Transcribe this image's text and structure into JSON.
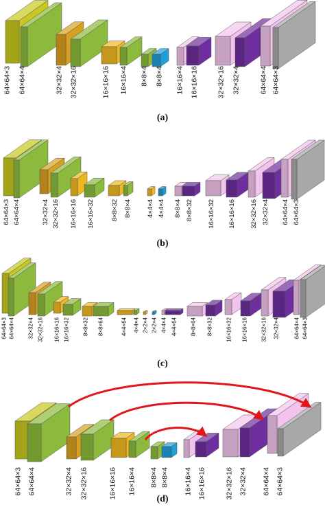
{
  "panels": [
    {
      "caption": "(a)",
      "labels": [
        "64×64×3",
        "64×64×4",
        "32×32×4",
        "32×32×16",
        "16×16×16",
        "16×16×4",
        "8×8×4",
        "8×8×4",
        "16×16×4",
        "16×16×16",
        "32×32×16",
        "32×32×4",
        "64×64×4",
        "64×64×3"
      ]
    },
    {
      "caption": "(b)",
      "labels": [
        "64×64×3",
        "64×64×4",
        "32×32×4",
        "32×32×16",
        "16×16×16",
        "16×16×32",
        "8×8×32",
        "8×8×4",
        "4×4×4",
        "4×4×4",
        "8×8×4",
        "8×8×32",
        "16×16×32",
        "16×16×16",
        "32×32×16",
        "32×32×4",
        "64×64×4",
        "64×64×3"
      ]
    },
    {
      "caption": "(c)",
      "labels": [
        "64×64×3",
        "64×64×4",
        "32×32×4",
        "32×32×16",
        "16×16×16",
        "16×16×32",
        "8×8×32",
        "8×8×64",
        "4×4×64",
        "4×4×4",
        "2×2×4",
        "2×2×4",
        "4×4×4",
        "4×4×64",
        "8×8×64",
        "8×8×32",
        "16×16×32",
        "16×16×16",
        "32×32×16",
        "32×32×4",
        "64×64×4",
        "64×64×3"
      ]
    },
    {
      "caption": "(d)",
      "labels": [
        "64×64×3",
        "64×64×4",
        "32×32×4",
        "32×32×16",
        "16×16×16",
        "16×16×4",
        "8×8×4",
        "8×8×4",
        "16×16×4",
        "16×16×16",
        "32×32×16",
        "32×32×4",
        "64×64×4",
        "64×64×3"
      ]
    }
  ]
}
